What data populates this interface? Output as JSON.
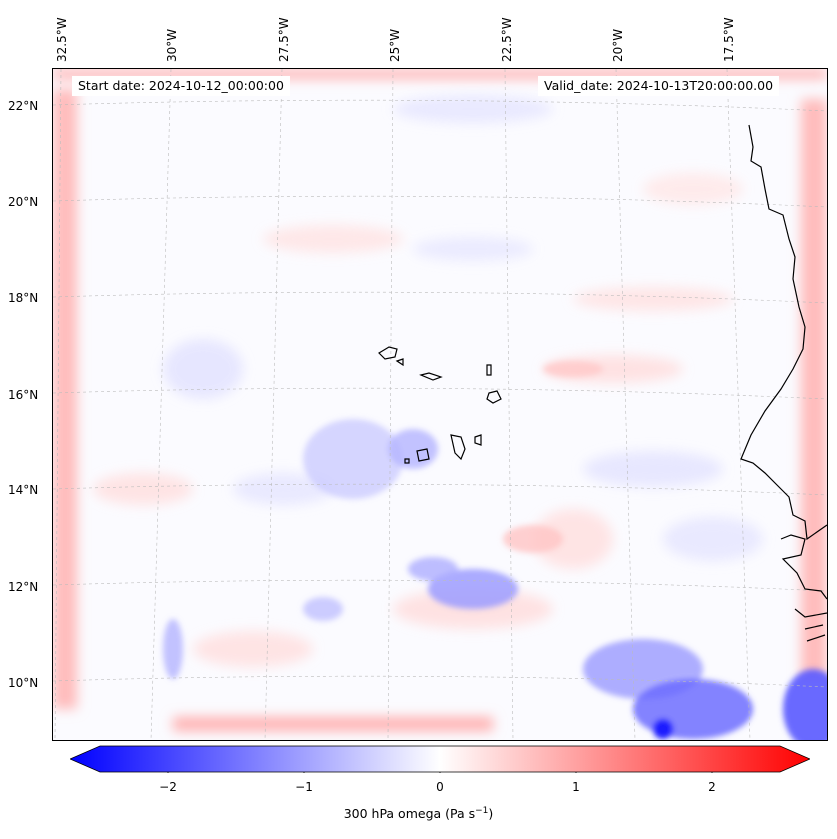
{
  "header": {
    "start_date": "Start date: 2024-10-12_00:00:00",
    "valid_date": "Valid_date: 2024-10-13T20:00:00.00"
  },
  "map": {
    "longitude_labels": [
      "32.5°W",
      "30°W",
      "27.5°W",
      "25°W",
      "22.5°W",
      "20°W",
      "17.5°W"
    ],
    "latitude_labels": [
      "22°N",
      "20°N",
      "18°N",
      "16°N",
      "14°N",
      "12°N",
      "10°N"
    ],
    "field": "300 hPa omega",
    "colormap": "bwr",
    "negative_color": "#0000ff",
    "positive_color": "#ff0000",
    "neutral_color": "#ffffff",
    "coastline_color": "#000000",
    "gridlines": true,
    "features": [
      "Cabo Verde islands",
      "West African coastline"
    ]
  },
  "colorbar": {
    "ticks": [
      "−2",
      "−1",
      "0",
      "1",
      "2"
    ],
    "tick_values": [
      -2,
      -1,
      0,
      1,
      2
    ],
    "range": [
      -2.5,
      2.5
    ],
    "label_prefix": "300 hPa omega (Pa s",
    "label_exp": "−1",
    "label_suffix": ")",
    "extend": "both"
  }
}
